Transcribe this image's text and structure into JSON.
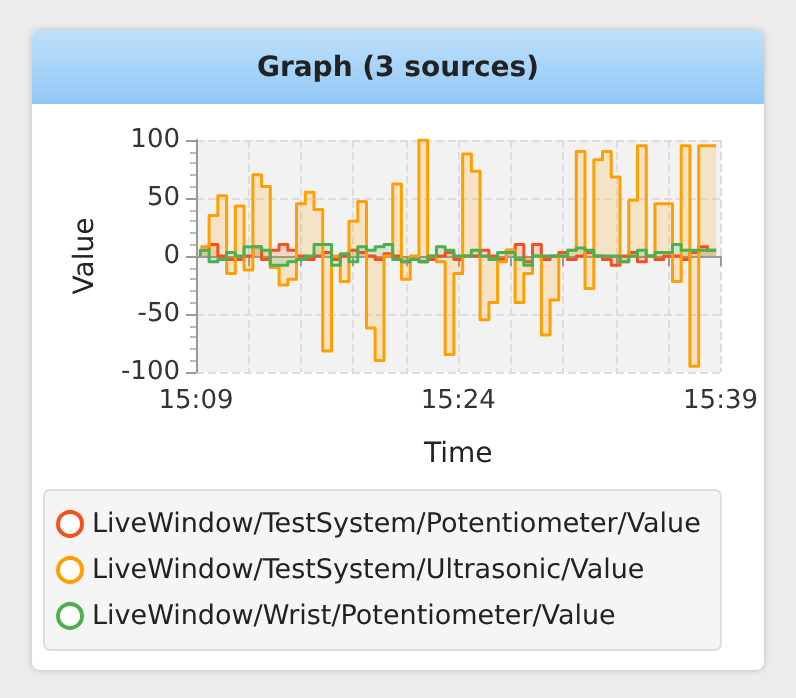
{
  "chart_data": {
    "type": "step",
    "title": "Graph (3 sources)",
    "xlabel": "Time",
    "ylabel": "Value",
    "x": [
      15.1542,
      15.1625,
      15.1708,
      15.1792,
      15.1875,
      15.1958,
      15.2042,
      15.2125,
      15.2208,
      15.2292,
      15.2375,
      15.2458,
      15.2542,
      15.2625,
      15.2708,
      15.2792,
      15.2875,
      15.2958,
      15.3042,
      15.3125,
      15.3208,
      15.3292,
      15.3375,
      15.3458,
      15.3542,
      15.3625,
      15.3708,
      15.3792,
      15.3875,
      15.3958,
      15.4042,
      15.4125,
      15.4208,
      15.4292,
      15.4375,
      15.4458,
      15.4542,
      15.4625,
      15.4708,
      15.4792,
      15.4875,
      15.4958,
      15.5042,
      15.5125,
      15.5208,
      15.5292,
      15.5375,
      15.5458,
      15.5542,
      15.5625,
      15.5708,
      15.5792,
      15.5875,
      15.5958,
      15.6042,
      15.6125,
      15.6208,
      15.6292,
      15.6375,
      15.6458
    ],
    "series": [
      {
        "name": "LiveWindow/TestSystem/Potentiometer/Value",
        "color": "#f4511e",
        "values": [
          2,
          5,
          10,
          0,
          -3,
          -3,
          0,
          8,
          -3,
          5,
          10,
          5,
          0,
          -3,
          0,
          3,
          -3,
          0,
          5,
          3,
          0,
          -3,
          2,
          0,
          -5,
          -3,
          -5,
          -3,
          0,
          3,
          -3,
          0,
          0,
          5,
          0,
          -3,
          5,
          10,
          -5,
          10,
          -3,
          0,
          3,
          -3,
          0,
          3,
          0,
          -3,
          -8,
          0,
          3,
          -5,
          0,
          -3,
          0,
          0,
          -3,
          3,
          8,
          5
        ]
      },
      {
        "name": "LiveWindow/TestSystem/Ultrasonic/Value",
        "color": "#ffa000",
        "values": [
          8,
          8,
          35,
          52,
          -15,
          43,
          -12,
          70,
          60,
          -10,
          -25,
          -20,
          45,
          55,
          40,
          -82,
          0,
          -22,
          30,
          47,
          -62,
          -90,
          0,
          62,
          -20,
          0,
          100,
          0,
          -5,
          -85,
          -15,
          88,
          73,
          -55,
          -40,
          -5,
          5,
          -40,
          -15,
          0,
          -68,
          -38,
          0,
          5,
          90,
          -28,
          83,
          90,
          68,
          -5,
          48,
          95,
          0,
          45,
          45,
          -22,
          95,
          -95,
          95,
          95
        ]
      },
      {
        "name": "LiveWindow/Wrist/Potentiometer/Value",
        "color": "#4caf50",
        "values": [
          0,
          5,
          -5,
          -3,
          3,
          0,
          8,
          8,
          5,
          -8,
          -8,
          -5,
          -3,
          0,
          10,
          10,
          -8,
          2,
          -5,
          8,
          5,
          8,
          10,
          -3,
          -5,
          -3,
          -5,
          0,
          8,
          5,
          0,
          0,
          5,
          0,
          -3,
          3,
          3,
          -3,
          -8,
          0,
          0,
          0,
          0,
          5,
          7,
          5,
          0,
          0,
          0,
          -5,
          0,
          5,
          0,
          3,
          3,
          10,
          5,
          5,
          5,
          5
        ]
      }
    ],
    "xlim": [
      15.15,
      15.65
    ],
    "xticks": [
      {
        "value": 15.15,
        "label": "15:09"
      },
      {
        "value": 15.2,
        "label": null
      },
      {
        "value": 15.25,
        "label": null
      },
      {
        "value": 15.3,
        "label": null
      },
      {
        "value": 15.35,
        "label": null
      },
      {
        "value": 15.4,
        "label": "15:24"
      },
      {
        "value": 15.45,
        "label": null
      },
      {
        "value": 15.5,
        "label": null
      },
      {
        "value": 15.55,
        "label": null
      },
      {
        "value": 15.6,
        "label": null
      },
      {
        "value": 15.65,
        "label": "15:39"
      }
    ],
    "ylim": [
      -100,
      100
    ],
    "yticks": [
      -100,
      -50,
      0,
      50,
      100
    ],
    "grid": true,
    "legend": "bottom",
    "marker": "none",
    "line_style": "solid"
  }
}
